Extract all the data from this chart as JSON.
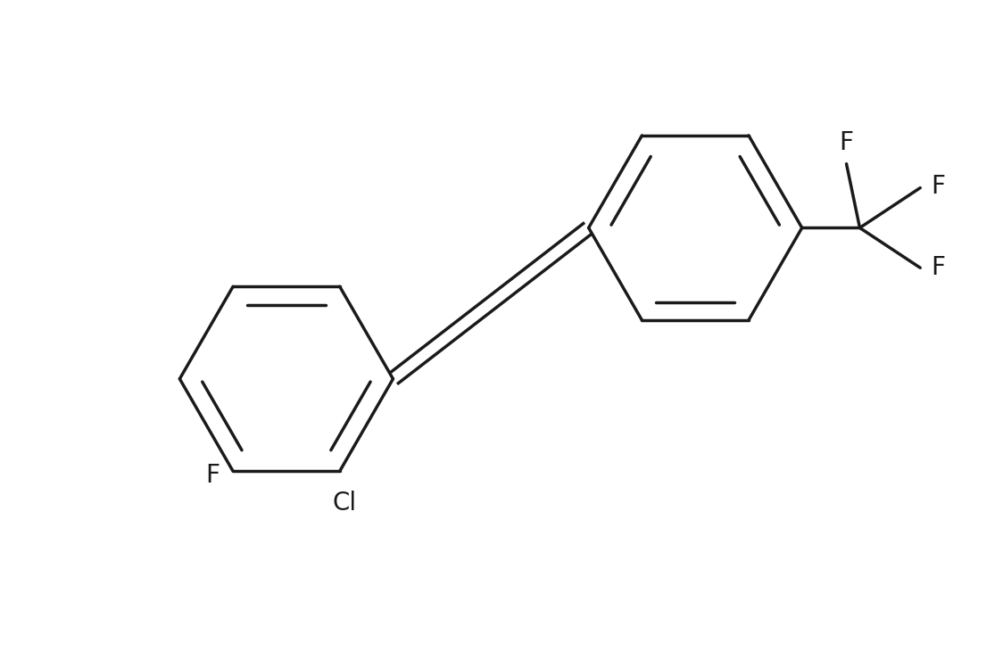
{
  "background_color": "#ffffff",
  "line_color": "#1a1a1a",
  "line_width": 2.5,
  "font_size": 20,
  "font_family": "DejaVu Sans",
  "figsize": [
    11.24,
    7.4
  ],
  "dpi": 100,
  "xlim": [
    0,
    11.24
  ],
  "ylim": [
    0,
    7.4
  ]
}
